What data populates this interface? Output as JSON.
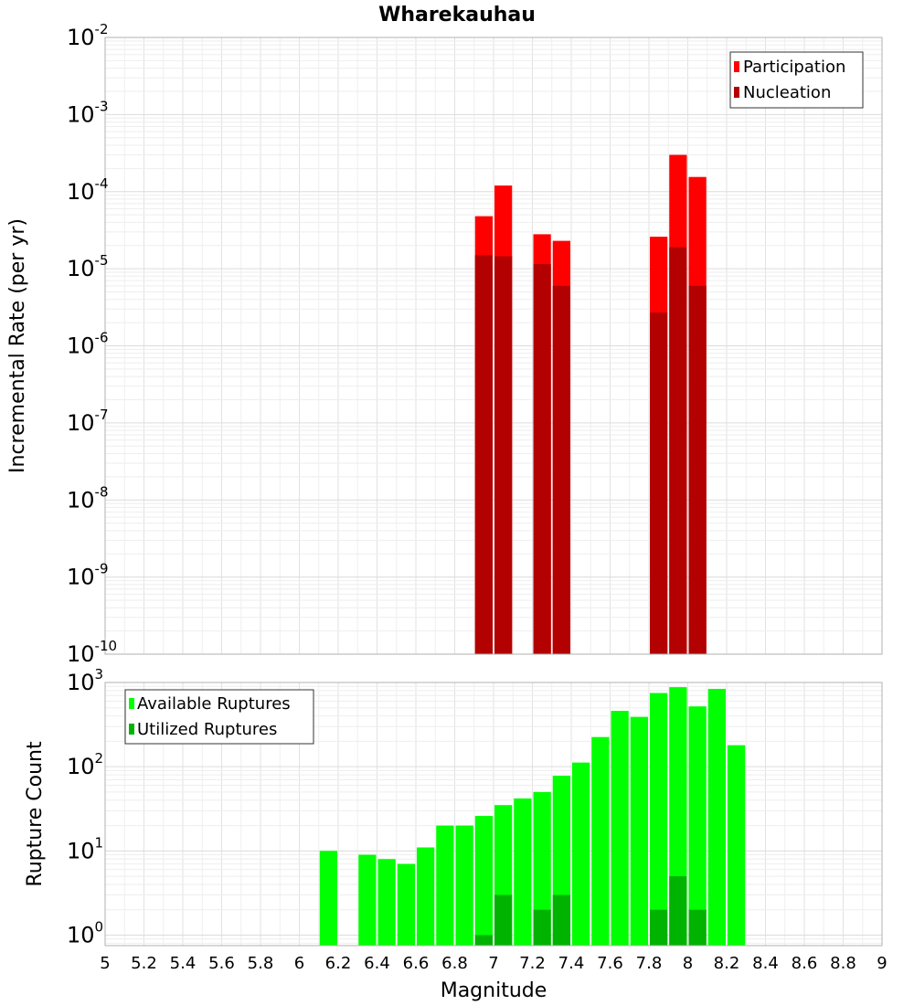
{
  "chart_data": [
    {
      "type": "bar",
      "title": "Wharekauhau",
      "ylabel": "Incremental Rate (per yr)",
      "yscale": "log",
      "ylim": [
        1e-10,
        0.01
      ],
      "y_tick_exponents": [
        -10,
        -9,
        -8,
        -7,
        -6,
        -5,
        -4,
        -3,
        -2
      ],
      "xlim": [
        5,
        9
      ],
      "grid": true,
      "legend_position": "top-right",
      "bar_width": 0.1,
      "series": [
        {
          "name": "Participation",
          "color": "#ff0000",
          "x": [
            6.95,
            7.05,
            7.25,
            7.35,
            7.85,
            7.95,
            8.05
          ],
          "values": [
            4.8e-05,
            0.00012,
            2.8e-05,
            2.3e-05,
            2.6e-05,
            0.0003,
            0.000155
          ]
        },
        {
          "name": "Nucleation",
          "color": "#b30000",
          "x": [
            6.95,
            7.05,
            7.25,
            7.35,
            7.85,
            7.95,
            8.05
          ],
          "values": [
            1.5e-05,
            1.45e-05,
            1.15e-05,
            6e-06,
            2.7e-06,
            1.9e-05,
            6e-06
          ]
        }
      ]
    },
    {
      "type": "bar",
      "xlabel": "Magnitude",
      "ylabel": "Rupture Count",
      "yscale": "log",
      "ylim": [
        0.75,
        1000
      ],
      "y_tick_exponents": [
        0,
        1,
        2,
        3
      ],
      "xlim": [
        5,
        9
      ],
      "x_ticks": [
        "5",
        "5.2",
        "5.4",
        "5.6",
        "5.8",
        "6",
        "6.2",
        "6.4",
        "6.6",
        "6.8",
        "7",
        "7.2",
        "7.4",
        "7.6",
        "7.8",
        "8",
        "8.2",
        "8.4",
        "8.6",
        "8.8",
        "9"
      ],
      "grid": true,
      "legend_position": "top-left",
      "bar_width": 0.1,
      "series": [
        {
          "name": "Available Ruptures",
          "color": "#00ff00",
          "x": [
            6.15,
            6.35,
            6.45,
            6.55,
            6.65,
            6.75,
            6.85,
            6.95,
            7.05,
            7.15,
            7.25,
            7.35,
            7.45,
            7.55,
            7.65,
            7.75,
            7.85,
            7.95,
            8.05,
            8.15,
            8.25
          ],
          "values": [
            10,
            9,
            8,
            7,
            11,
            20,
            20,
            26,
            35,
            42,
            50,
            78,
            112,
            225,
            460,
            390,
            750,
            880,
            520,
            840,
            180
          ]
        },
        {
          "name": "Utilized Ruptures",
          "color": "#00b300",
          "x": [
            6.95,
            7.05,
            7.25,
            7.35,
            7.85,
            7.95,
            8.05
          ],
          "values": [
            1,
            3,
            2,
            3,
            2,
            5,
            2
          ]
        }
      ]
    }
  ]
}
